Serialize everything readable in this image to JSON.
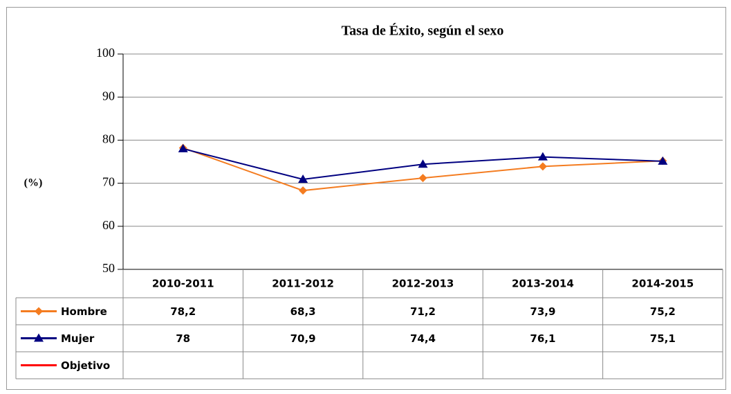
{
  "chart_data": {
    "type": "line",
    "title": "Tasa de Éxito, según el sexo",
    "y_label": "(%)",
    "categories": [
      "2010-2011",
      "2011-2012",
      "2012-2013",
      "2013-2014",
      "2014-2015"
    ],
    "series": [
      {
        "name": "Hombre",
        "color": "#f47c20",
        "marker": "diamond",
        "values": [
          78.2,
          68.3,
          71.2,
          73.9,
          75.2
        ],
        "value_labels": [
          "78,2",
          "68,3",
          "71,2",
          "73,9",
          "75,2"
        ]
      },
      {
        "name": "Mujer",
        "color": "#000080",
        "marker": "triangle",
        "values": [
          78,
          70.9,
          74.4,
          76.1,
          75.1
        ],
        "value_labels": [
          "78",
          "70,9",
          "74,4",
          "76,1",
          "75,1"
        ]
      },
      {
        "name": "Objetivo",
        "color": "#ff0000",
        "marker": "none",
        "values": [
          null,
          null,
          null,
          null,
          null
        ]
      }
    ],
    "ylim": [
      50,
      100
    ],
    "yticks": [
      50,
      60,
      70,
      80,
      90,
      100
    ],
    "grid": true
  }
}
